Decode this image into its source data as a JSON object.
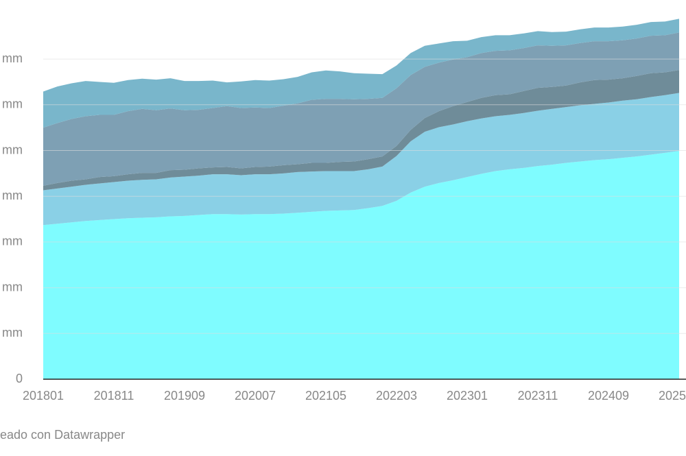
{
  "chart_data": {
    "type": "stacked_area",
    "categories": [
      "201801",
      null,
      null,
      null,
      null,
      "201811",
      null,
      null,
      null,
      null,
      "201909",
      null,
      null,
      null,
      null,
      "202007",
      null,
      null,
      null,
      null,
      "202105",
      null,
      null,
      null,
      null,
      "202203",
      null,
      null,
      null,
      null,
      "202301",
      null,
      null,
      null,
      null,
      "202311",
      null,
      null,
      null,
      null,
      "202409",
      null,
      null,
      null,
      null,
      "2025"
    ],
    "series": [
      {
        "color": "#7ffcff",
        "values": [
          3.37,
          3.4,
          3.43,
          3.46,
          3.48,
          3.5,
          3.52,
          3.53,
          3.54,
          3.56,
          3.57,
          3.59,
          3.61,
          3.61,
          3.6,
          3.61,
          3.61,
          3.62,
          3.64,
          3.66,
          3.68,
          3.69,
          3.7,
          3.74,
          3.79,
          3.9,
          4.08,
          4.21,
          4.29,
          4.35,
          4.42,
          4.49,
          4.55,
          4.59,
          4.62,
          4.66,
          4.69,
          4.73,
          4.76,
          4.79,
          4.81,
          4.84,
          4.87,
          4.91,
          4.95,
          4.99
        ]
      },
      {
        "color": "#8ad0e6",
        "values": [
          0.76,
          0.77,
          0.78,
          0.79,
          0.8,
          0.81,
          0.82,
          0.83,
          0.83,
          0.85,
          0.86,
          0.86,
          0.87,
          0.87,
          0.86,
          0.87,
          0.87,
          0.88,
          0.89,
          0.88,
          0.87,
          0.86,
          0.85,
          0.85,
          0.86,
          0.98,
          1.12,
          1.2,
          1.22,
          1.22,
          1.22,
          1.21,
          1.2,
          1.19,
          1.2,
          1.21,
          1.22,
          1.22,
          1.23,
          1.23,
          1.24,
          1.25,
          1.25,
          1.26,
          1.26,
          1.27
        ]
      },
      {
        "color": "#6f8c99",
        "values": [
          0.1,
          0.12,
          0.13,
          0.12,
          0.14,
          0.13,
          0.14,
          0.15,
          0.14,
          0.16,
          0.15,
          0.16,
          0.15,
          0.16,
          0.15,
          0.16,
          0.17,
          0.18,
          0.17,
          0.19,
          0.18,
          0.2,
          0.21,
          0.22,
          0.22,
          0.22,
          0.25,
          0.3,
          0.35,
          0.4,
          0.42,
          0.45,
          0.46,
          0.45,
          0.48,
          0.5,
          0.48,
          0.47,
          0.5,
          0.52,
          0.5,
          0.49,
          0.51,
          0.52,
          0.5,
          0.5
        ]
      },
      {
        "color": "#7ea0b4",
        "values": [
          1.27,
          1.31,
          1.35,
          1.38,
          1.36,
          1.34,
          1.38,
          1.4,
          1.37,
          1.35,
          1.3,
          1.28,
          1.3,
          1.33,
          1.32,
          1.3,
          1.28,
          1.3,
          1.33,
          1.38,
          1.4,
          1.38,
          1.36,
          1.32,
          1.28,
          1.26,
          1.2,
          1.12,
          1.06,
          1.02,
          0.98,
          0.98,
          0.97,
          0.96,
          0.94,
          0.93,
          0.9,
          0.88,
          0.86,
          0.85,
          0.84,
          0.83,
          0.82,
          0.82,
          0.81,
          0.82
        ]
      },
      {
        "color": "#79b6cb",
        "values": [
          0.79,
          0.8,
          0.78,
          0.77,
          0.72,
          0.7,
          0.68,
          0.66,
          0.67,
          0.66,
          0.64,
          0.63,
          0.6,
          0.52,
          0.58,
          0.6,
          0.6,
          0.58,
          0.58,
          0.6,
          0.62,
          0.6,
          0.57,
          0.55,
          0.52,
          0.5,
          0.48,
          0.46,
          0.42,
          0.4,
          0.36,
          0.35,
          0.34,
          0.33,
          0.32,
          0.31,
          0.3,
          0.3,
          0.3,
          0.3,
          0.3,
          0.3,
          0.3,
          0.3,
          0.3,
          0.3
        ]
      }
    ],
    "ylim": [
      0,
      8
    ],
    "yticks": [
      0,
      {
        "value": 1,
        "label": "mm"
      },
      {
        "value": 2,
        "label": "mm"
      },
      {
        "value": 3,
        "label": "mm"
      },
      {
        "value": 4,
        "label": "mm"
      },
      {
        "value": 5,
        "label": "mm"
      },
      {
        "value": 6,
        "label": "mm"
      },
      {
        "value": 7,
        "label": "mm"
      }
    ],
    "grid": true,
    "footer": "eado con Datawrapper"
  }
}
